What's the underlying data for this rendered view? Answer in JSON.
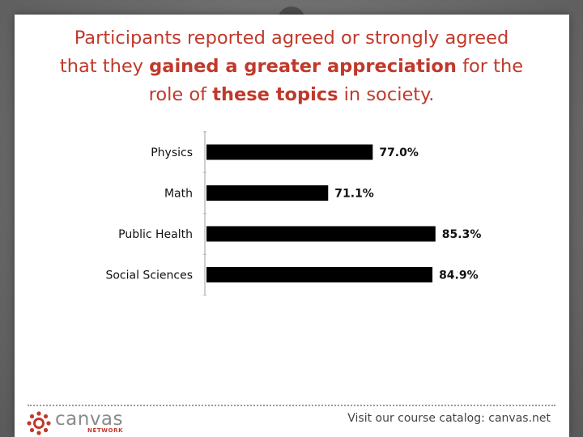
{
  "title": {
    "line1": "Participants reported agreed or strongly agreed",
    "line2_pre": "that they ",
    "line2_bold": "gained a greater appreciation",
    "line2_post": " for the",
    "line3_pre": "role of ",
    "line3_bold": "these topics",
    "line3_post": " in society."
  },
  "chart_data": {
    "type": "bar",
    "orientation": "horizontal",
    "categories": [
      "Physics",
      "Math",
      "Public Health",
      "Social Sciences"
    ],
    "values": [
      77.0,
      71.1,
      85.3,
      84.9
    ],
    "value_labels": [
      "77.0%",
      "71.1%",
      "85.3%",
      "84.9%"
    ],
    "xlim": [
      55,
      90
    ],
    "grid": false,
    "bar_color": "#000000"
  },
  "footer": {
    "brand": "canvas",
    "brand_sub": "NETWORK",
    "catalog_text": "Visit our course catalog: canvas.net"
  },
  "colors": {
    "title": "#c0392b",
    "brand_red": "#c0392b"
  }
}
